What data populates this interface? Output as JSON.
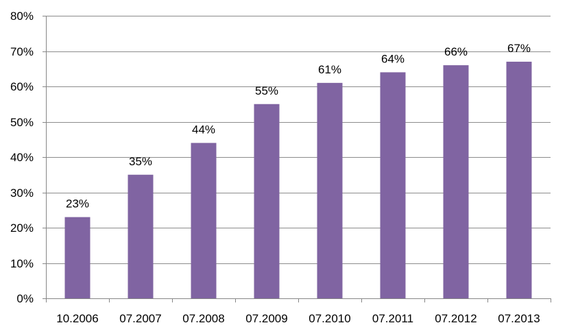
{
  "chart_data": {
    "type": "bar",
    "categories": [
      "10.2006",
      "07.2007",
      "07.2008",
      "07.2009",
      "07.2010",
      "07.2011",
      "07.2012",
      "07.2013"
    ],
    "values": [
      23,
      35,
      44,
      55,
      61,
      64,
      66,
      67
    ],
    "data_labels": [
      "23%",
      "35%",
      "44%",
      "55%",
      "61%",
      "64%",
      "66%",
      "67%"
    ],
    "y_ticks": [
      0,
      10,
      20,
      30,
      40,
      50,
      60,
      70,
      80
    ],
    "y_tick_labels": [
      "0%",
      "10%",
      "20%",
      "30%",
      "40%",
      "50%",
      "60%",
      "70%",
      "80%"
    ],
    "ylim": [
      0,
      80
    ],
    "grid": true,
    "legend": "none",
    "title": "",
    "xlabel": "",
    "ylabel": "",
    "colors": {
      "bar": "#8064A2",
      "grid": "#8C8C8C",
      "axis": "#868686"
    }
  }
}
